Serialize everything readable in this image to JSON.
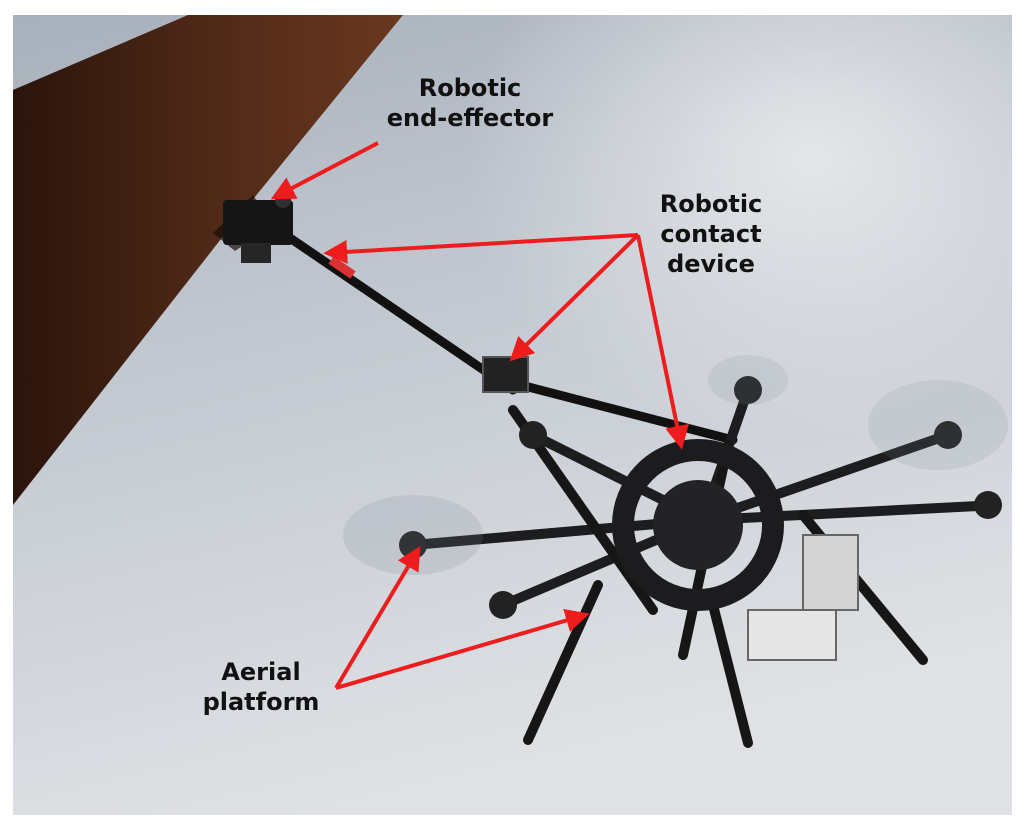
{
  "annotations": {
    "end_effector": {
      "line1": "Robotic",
      "line2": "end-effector"
    },
    "contact_device": {
      "line1": "Robotic",
      "line2": "contact",
      "line3": "device"
    },
    "aerial_platform": {
      "line1": "Aerial",
      "line2": "platform"
    }
  },
  "colors": {
    "arrow": "#ee1c1c",
    "sky_light": "#d9dde3",
    "sky_dark": "#9aa4b1",
    "pipe": "#4a2616",
    "drone_frame": "#1d1d1f"
  }
}
